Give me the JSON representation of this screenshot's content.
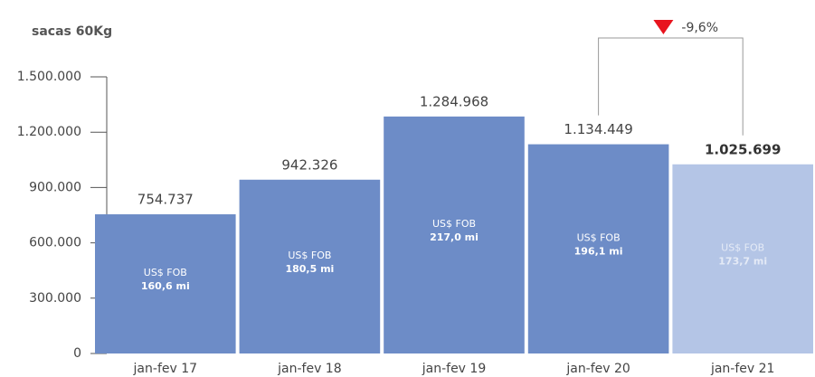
{
  "chart_data": {
    "type": "bar",
    "y_axis_label": "sacas 60Kg",
    "categories": [
      "jan-fev 17",
      "jan-fev 18",
      "jan-fev 19",
      "jan-fev 20",
      "jan-fev 21"
    ],
    "values": [
      754737,
      942326,
      1284968,
      1134449,
      1025699
    ],
    "value_labels": [
      "754.737",
      "942.326",
      "1.284.968",
      "1.134.449",
      "1.025.699"
    ],
    "colors": [
      "#6d8cc7",
      "#6d8cc7",
      "#6d8cc7",
      "#6d8cc7",
      "#b4c5e6"
    ],
    "inner_labels": [
      {
        "line1": "US$ FOB",
        "line2": "160,6 mi"
      },
      {
        "line1": "US$ FOB",
        "line2": "180,5 mi"
      },
      {
        "line1": "US$ FOB",
        "line2": "217,0 mi"
      },
      {
        "line1": "US$ FOB",
        "line2": "196,1 mi"
      },
      {
        "line1": "US$ FOB",
        "line2": "173,7 mi"
      }
    ],
    "change_label": "-9,6%",
    "ylim": [
      0,
      1500000
    ],
    "yticks": [
      0,
      {
        "value": 300000,
        "label": "300.000"
      },
      {
        "value": 600000,
        "label": "600.000"
      },
      {
        "value": 900000,
        "label": "900.000"
      },
      {
        "value": 1200000,
        "label": "1.200.000"
      },
      {
        "value": 1500000,
        "label": "1.500.000"
      }
    ]
  }
}
